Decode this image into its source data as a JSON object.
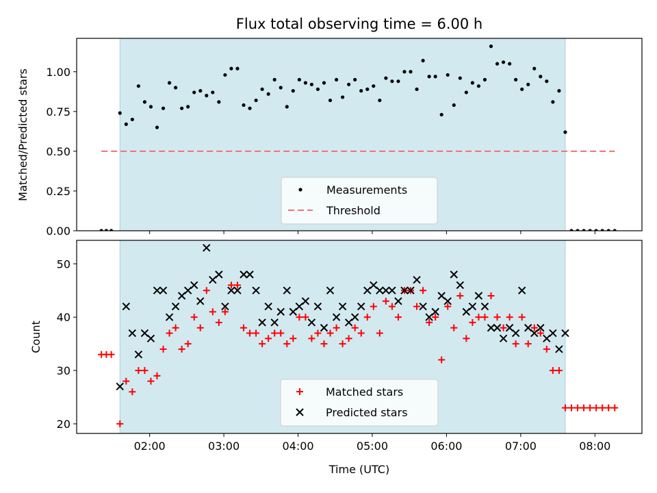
{
  "chart_data": [
    {
      "type": "scatter",
      "title": "Flux total observing time = 6.00 h",
      "xlabel": "",
      "ylabel": "Matched/Predicted stars",
      "xlim": [
        "01:01",
        "08:38"
      ],
      "ylim": [
        0,
        1.21
      ],
      "yticks": [
        "0.00",
        "0.25",
        "0.50",
        "0.75",
        "1.00"
      ],
      "xticks": [
        "02:00",
        "03:00",
        "04:00",
        "05:00",
        "06:00",
        "07:00",
        "08:00"
      ],
      "shaded_interval": [
        "01:36",
        "07:36"
      ],
      "shade_color": "#d3e9f0",
      "legend_position": "lower center",
      "series": [
        {
          "name": "Measurements",
          "color": "#000000",
          "marker": "dot",
          "points": [
            [
              "01:21",
              0.0
            ],
            [
              "01:25",
              0.0
            ],
            [
              "01:29",
              0.0
            ],
            [
              "01:36",
              0.74
            ],
            [
              "01:41",
              0.67
            ],
            [
              "01:46",
              0.7
            ],
            [
              "01:51",
              0.91
            ],
            [
              "01:56",
              0.81
            ],
            [
              "02:01",
              0.78
            ],
            [
              "02:06",
              0.65
            ],
            [
              "02:11",
              0.77
            ],
            [
              "02:16",
              0.93
            ],
            [
              "02:21",
              0.9
            ],
            [
              "02:26",
              0.77
            ],
            [
              "02:31",
              0.78
            ],
            [
              "02:36",
              0.87
            ],
            [
              "02:41",
              0.88
            ],
            [
              "02:46",
              0.85
            ],
            [
              "02:51",
              0.87
            ],
            [
              "02:56",
              0.81
            ],
            [
              "03:01",
              0.98
            ],
            [
              "03:06",
              1.02
            ],
            [
              "03:11",
              1.02
            ],
            [
              "03:16",
              0.79
            ],
            [
              "03:21",
              0.77
            ],
            [
              "03:26",
              0.82
            ],
            [
              "03:31",
              0.89
            ],
            [
              "03:36",
              0.86
            ],
            [
              "03:41",
              0.95
            ],
            [
              "03:46",
              0.9
            ],
            [
              "03:51",
              0.78
            ],
            [
              "03:56",
              0.88
            ],
            [
              "04:01",
              0.95
            ],
            [
              "04:06",
              0.93
            ],
            [
              "04:11",
              0.92
            ],
            [
              "04:16",
              0.89
            ],
            [
              "04:21",
              0.93
            ],
            [
              "04:26",
              0.82
            ],
            [
              "04:31",
              0.95
            ],
            [
              "04:36",
              0.84
            ],
            [
              "04:41",
              0.92
            ],
            [
              "04:46",
              0.95
            ],
            [
              "04:51",
              0.88
            ],
            [
              "04:56",
              0.89
            ],
            [
              "05:01",
              0.91
            ],
            [
              "05:06",
              0.82
            ],
            [
              "05:11",
              0.96
            ],
            [
              "05:16",
              0.94
            ],
            [
              "05:21",
              0.94
            ],
            [
              "05:26",
              1.0
            ],
            [
              "05:31",
              1.0
            ],
            [
              "05:36",
              0.89
            ],
            [
              "05:41",
              1.07
            ],
            [
              "05:46",
              0.97
            ],
            [
              "05:51",
              0.97
            ],
            [
              "05:56",
              0.73
            ],
            [
              "06:01",
              0.98
            ],
            [
              "06:06",
              0.79
            ],
            [
              "06:11",
              0.96
            ],
            [
              "06:16",
              0.87
            ],
            [
              "06:21",
              0.93
            ],
            [
              "06:26",
              0.91
            ],
            [
              "06:31",
              0.95
            ],
            [
              "06:36",
              1.16
            ],
            [
              "06:41",
              1.05
            ],
            [
              "06:46",
              1.06
            ],
            [
              "06:51",
              1.05
            ],
            [
              "06:56",
              0.95
            ],
            [
              "07:01",
              0.89
            ],
            [
              "07:06",
              0.92
            ],
            [
              "07:11",
              1.02
            ],
            [
              "07:16",
              0.97
            ],
            [
              "07:21",
              0.94
            ],
            [
              "07:26",
              0.81
            ],
            [
              "07:31",
              0.88
            ],
            [
              "07:36",
              0.62
            ],
            [
              "07:41",
              0.0
            ],
            [
              "07:46",
              0.0
            ],
            [
              "07:51",
              0.0
            ],
            [
              "07:56",
              0.0
            ],
            [
              "08:01",
              0.0
            ],
            [
              "08:06",
              0.0
            ],
            [
              "08:11",
              0.0
            ],
            [
              "08:16",
              0.0
            ]
          ]
        },
        {
          "name": "Threshold",
          "color": "#f07070",
          "style": "dashed",
          "points": [
            [
              "01:21",
              0.5
            ],
            [
              "08:16",
              0.5
            ]
          ]
        }
      ]
    },
    {
      "type": "scatter",
      "title": "",
      "xlabel": "Time (UTC)",
      "ylabel": "Count",
      "xlim": [
        "01:01",
        "08:38"
      ],
      "ylim": [
        18.2,
        54.4
      ],
      "yticks": [
        "20",
        "30",
        "40",
        "50"
      ],
      "xticks": [
        "02:00",
        "03:00",
        "04:00",
        "05:00",
        "06:00",
        "07:00",
        "08:00"
      ],
      "shaded_interval": [
        "01:36",
        "07:36"
      ],
      "shade_color": "#d3e9f0",
      "legend_position": "lower center",
      "series": [
        {
          "name": "Matched stars",
          "color": "#ff0000",
          "marker": "plus",
          "points": [
            [
              "01:21",
              33
            ],
            [
              "01:25",
              33
            ],
            [
              "01:29",
              33
            ],
            [
              "01:36",
              20
            ],
            [
              "01:41",
              28
            ],
            [
              "01:46",
              26
            ],
            [
              "01:51",
              30
            ],
            [
              "01:56",
              30
            ],
            [
              "02:01",
              28
            ],
            [
              "02:06",
              29
            ],
            [
              "02:11",
              34
            ],
            [
              "02:16",
              37
            ],
            [
              "02:21",
              38
            ],
            [
              "02:26",
              34
            ],
            [
              "02:31",
              35
            ],
            [
              "02:36",
              40
            ],
            [
              "02:41",
              38
            ],
            [
              "02:46",
              45
            ],
            [
              "02:51",
              41
            ],
            [
              "02:56",
              39
            ],
            [
              "03:01",
              41
            ],
            [
              "03:06",
              46
            ],
            [
              "03:11",
              46
            ],
            [
              "03:16",
              38
            ],
            [
              "03:21",
              37
            ],
            [
              "03:26",
              37
            ],
            [
              "03:31",
              35
            ],
            [
              "03:36",
              36
            ],
            [
              "03:41",
              37
            ],
            [
              "03:46",
              37
            ],
            [
              "03:51",
              35
            ],
            [
              "03:56",
              36
            ],
            [
              "04:01",
              40
            ],
            [
              "04:06",
              40
            ],
            [
              "04:11",
              36
            ],
            [
              "04:16",
              37
            ],
            [
              "04:21",
              35
            ],
            [
              "04:26",
              37
            ],
            [
              "04:31",
              38
            ],
            [
              "04:36",
              35
            ],
            [
              "04:41",
              36
            ],
            [
              "04:46",
              38
            ],
            [
              "04:51",
              37
            ],
            [
              "04:56",
              40
            ],
            [
              "05:01",
              42
            ],
            [
              "05:06",
              37
            ],
            [
              "05:11",
              43
            ],
            [
              "05:16",
              42
            ],
            [
              "05:21",
              40
            ],
            [
              "05:26",
              45
            ],
            [
              "05:31",
              45
            ],
            [
              "05:36",
              42
            ],
            [
              "05:41",
              45
            ],
            [
              "05:46",
              39
            ],
            [
              "05:51",
              40
            ],
            [
              "05:56",
              32
            ],
            [
              "06:01",
              42
            ],
            [
              "06:06",
              38
            ],
            [
              "06:11",
              44
            ],
            [
              "06:16",
              36
            ],
            [
              "06:21",
              39
            ],
            [
              "06:26",
              40
            ],
            [
              "06:31",
              40
            ],
            [
              "06:36",
              44
            ],
            [
              "06:41",
              40
            ],
            [
              "06:46",
              38
            ],
            [
              "06:51",
              40
            ],
            [
              "06:56",
              35
            ],
            [
              "07:01",
              40
            ],
            [
              "07:06",
              35
            ],
            [
              "07:11",
              38
            ],
            [
              "07:16",
              37
            ],
            [
              "07:21",
              34
            ],
            [
              "07:26",
              30
            ],
            [
              "07:31",
              30
            ],
            [
              "07:36",
              23
            ],
            [
              "07:41",
              23
            ],
            [
              "07:46",
              23
            ],
            [
              "07:51",
              23
            ],
            [
              "07:56",
              23
            ],
            [
              "08:01",
              23
            ],
            [
              "08:06",
              23
            ],
            [
              "08:11",
              23
            ],
            [
              "08:16",
              23
            ]
          ]
        },
        {
          "name": "Predicted stars",
          "color": "#000000",
          "marker": "x",
          "points": [
            [
              "01:36",
              27
            ],
            [
              "01:41",
              42
            ],
            [
              "01:46",
              37
            ],
            [
              "01:51",
              33
            ],
            [
              "01:56",
              37
            ],
            [
              "02:01",
              36
            ],
            [
              "02:06",
              45
            ],
            [
              "02:11",
              45
            ],
            [
              "02:16",
              40
            ],
            [
              "02:21",
              42
            ],
            [
              "02:26",
              44
            ],
            [
              "02:31",
              45
            ],
            [
              "02:36",
              46
            ],
            [
              "02:41",
              43
            ],
            [
              "02:46",
              53
            ],
            [
              "02:51",
              47
            ],
            [
              "02:56",
              48
            ],
            [
              "03:01",
              42
            ],
            [
              "03:06",
              45
            ],
            [
              "03:11",
              45
            ],
            [
              "03:16",
              48
            ],
            [
              "03:21",
              48
            ],
            [
              "03:26",
              45
            ],
            [
              "03:31",
              39
            ],
            [
              "03:36",
              42
            ],
            [
              "03:41",
              39
            ],
            [
              "03:46",
              41
            ],
            [
              "03:51",
              45
            ],
            [
              "03:56",
              41
            ],
            [
              "04:01",
              42
            ],
            [
              "04:06",
              43
            ],
            [
              "04:11",
              39
            ],
            [
              "04:16",
              42
            ],
            [
              "04:21",
              38
            ],
            [
              "04:26",
              45
            ],
            [
              "04:31",
              40
            ],
            [
              "04:36",
              42
            ],
            [
              "04:41",
              39
            ],
            [
              "04:46",
              40
            ],
            [
              "04:51",
              42
            ],
            [
              "04:56",
              45
            ],
            [
              "05:01",
              46
            ],
            [
              "05:06",
              45
            ],
            [
              "05:11",
              45
            ],
            [
              "05:16",
              45
            ],
            [
              "05:21",
              43
            ],
            [
              "05:26",
              45
            ],
            [
              "05:31",
              45
            ],
            [
              "05:36",
              47
            ],
            [
              "05:41",
              42
            ],
            [
              "05:46",
              40
            ],
            [
              "05:51",
              41
            ],
            [
              "05:56",
              44
            ],
            [
              "06:01",
              43
            ],
            [
              "06:06",
              48
            ],
            [
              "06:11",
              46
            ],
            [
              "06:16",
              41
            ],
            [
              "06:21",
              42
            ],
            [
              "06:26",
              44
            ],
            [
              "06:31",
              42
            ],
            [
              "06:36",
              38
            ],
            [
              "06:41",
              38
            ],
            [
              "06:46",
              36
            ],
            [
              "06:51",
              38
            ],
            [
              "06:56",
              37
            ],
            [
              "07:01",
              45
            ],
            [
              "07:06",
              38
            ],
            [
              "07:11",
              37
            ],
            [
              "07:16",
              38
            ],
            [
              "07:21",
              36
            ],
            [
              "07:26",
              37
            ],
            [
              "07:31",
              34
            ],
            [
              "07:36",
              37
            ]
          ]
        }
      ]
    }
  ]
}
